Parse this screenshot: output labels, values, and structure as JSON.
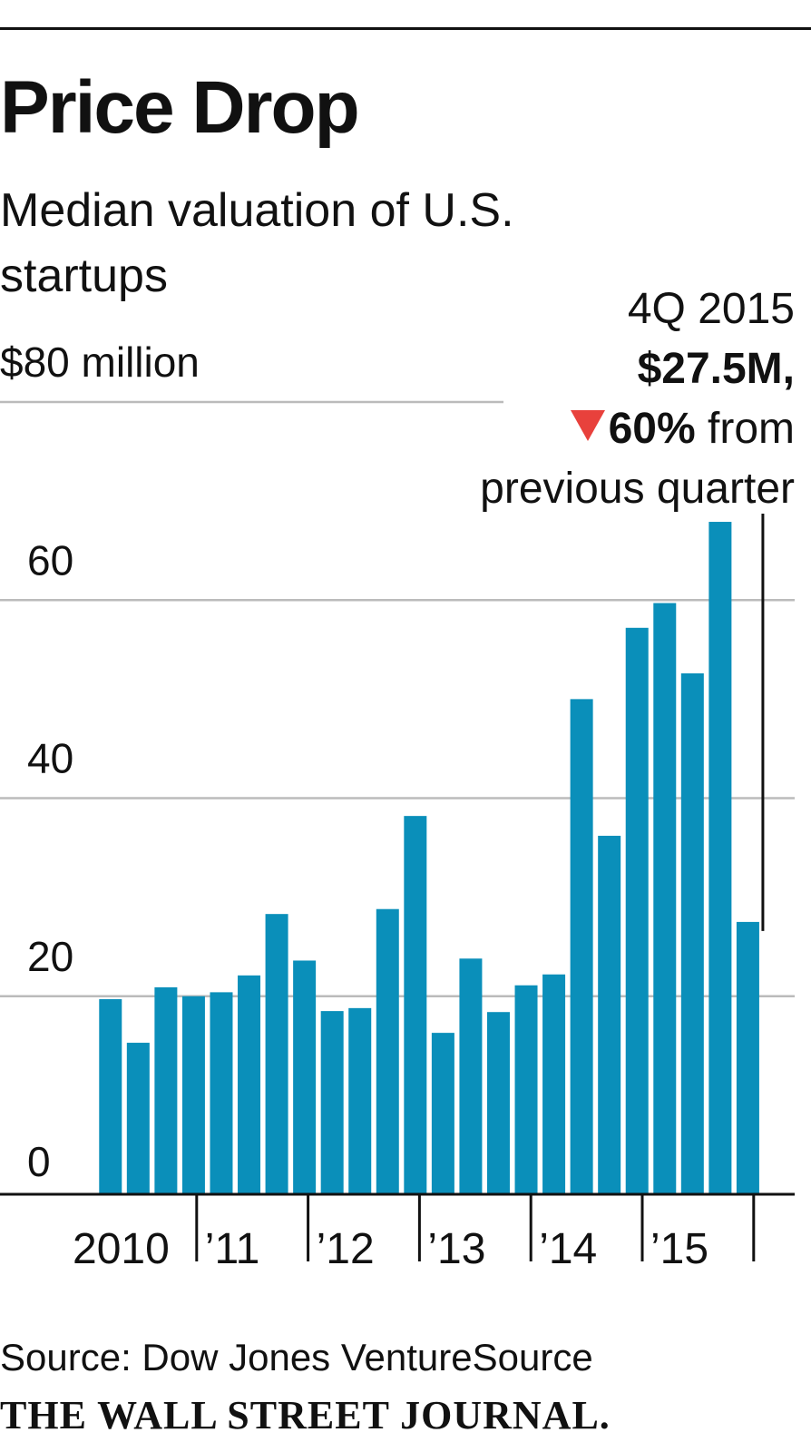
{
  "colors": {
    "bar": "#0a8fba",
    "grid": "#bbbbbb",
    "axis": "#111111",
    "arrow": "#e8413c"
  },
  "annotation": {
    "period": "4Q 2015",
    "value": "$27.5M,",
    "change": "60%",
    "change_rest": "from",
    "line2": "previous quarter",
    "arrow_icon": "down-triangle-icon"
  },
  "chart_data": {
    "type": "bar",
    "title": "Price Drop",
    "subtitle": "Median valuation of U.S. startups",
    "ylim": [
      0,
      80
    ],
    "yticks": [
      {
        "value": 0,
        "label": "0"
      },
      {
        "value": 20,
        "label": "20"
      },
      {
        "value": 40,
        "label": "40"
      },
      {
        "value": 60,
        "label": "60"
      },
      {
        "value": 80,
        "label": "$80 million"
      }
    ],
    "categories": [
      "1Q10",
      "2Q10",
      "3Q10",
      "4Q10",
      "1Q11",
      "2Q11",
      "3Q11",
      "4Q11",
      "1Q12",
      "2Q12",
      "3Q12",
      "4Q12",
      "1Q13",
      "2Q13",
      "3Q13",
      "4Q13",
      "1Q14",
      "2Q14",
      "3Q14",
      "4Q14",
      "1Q15",
      "2Q15",
      "3Q15",
      "4Q15"
    ],
    "values": [
      19.7,
      15.3,
      20.9,
      20.0,
      20.4,
      22.1,
      28.3,
      23.6,
      18.5,
      18.8,
      28.8,
      38.2,
      16.3,
      23.8,
      18.4,
      21.1,
      22.2,
      50.0,
      36.2,
      57.2,
      59.7,
      52.6,
      67.9,
      27.5
    ],
    "year_labels": [
      "2010",
      "’11",
      "’12",
      "’13",
      "’14",
      "’15"
    ],
    "grid": true,
    "source": "Source: Dow Jones VentureSource",
    "publisher": "THE WALL STREET JOURNAL."
  }
}
